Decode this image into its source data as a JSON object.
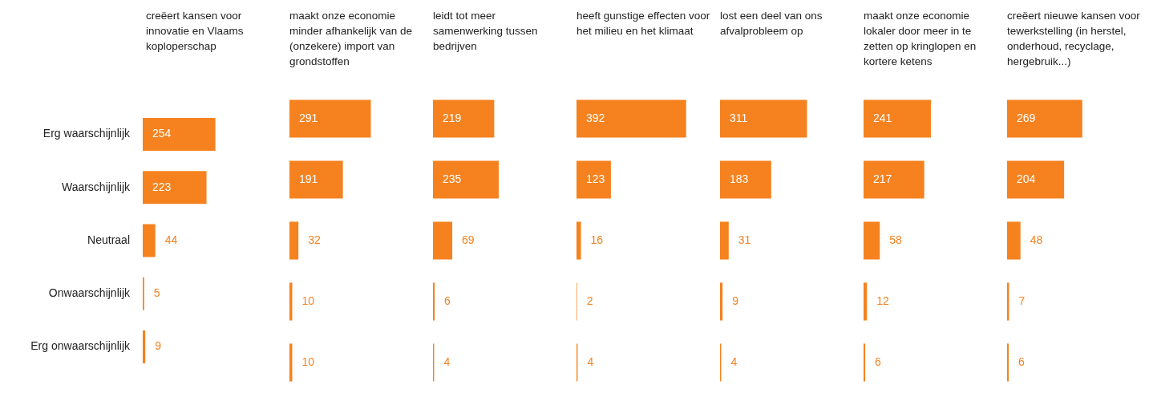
{
  "chart_data": [
    {
      "type": "bar",
      "orientation": "horizontal",
      "title": "creëert kansen voor innovatie en Vlaams koploperschap",
      "categories": [
        "Erg waarschijnlijk",
        "Waarschijnlijk",
        "Neutraal",
        "Onwaarschijnlijk",
        "Erg onwaarschijnlijk"
      ],
      "values": [
        254,
        223,
        44,
        5,
        9
      ],
      "color": "#f5821f",
      "data_labels": true,
      "tick_labels": "y"
    },
    {
      "type": "bar",
      "orientation": "horizontal",
      "title": "maakt onze economie minder afhankelijk van de (onzekere) import van grondstoffen",
      "categories": [
        null,
        null,
        null,
        null,
        null
      ],
      "values": [
        291,
        191,
        32,
        10,
        10
      ],
      "color": "#f5821f",
      "data_labels": true,
      "tick_labels": false
    },
    {
      "type": "bar",
      "orientation": "horizontal",
      "title": "leidt tot meer samenwerking tussen bedrijven",
      "categories": [
        null,
        null,
        null,
        null,
        null
      ],
      "values": [
        219,
        235,
        69,
        6,
        4
      ],
      "color": "#f5821f",
      "data_labels": true,
      "tick_labels": false
    },
    {
      "type": "bar",
      "orientation": "horizontal",
      "title": "heeft gunstige effecten voor het milieu en het klimaat",
      "categories": [
        null,
        null,
        null,
        null,
        null
      ],
      "values": [
        392,
        123,
        16,
        2,
        4
      ],
      "color": "#f5821f",
      "data_labels": true,
      "tick_labels": false
    },
    {
      "type": "bar",
      "orientation": "horizontal",
      "title": "lost een deel van ons afvalprobleem op",
      "categories": [
        null,
        null,
        null,
        null,
        null
      ],
      "values": [
        311,
        183,
        31,
        9,
        4
      ],
      "color": "#f5821f",
      "data_labels": true,
      "tick_labels": false
    },
    {
      "type": "bar",
      "orientation": "horizontal",
      "title": "maakt onze economie lokaler door meer in te zetten op kringlopen en kortere ketens",
      "categories": [
        null,
        null,
        null,
        null,
        null
      ],
      "values": [
        241,
        217,
        58,
        12,
        6
      ],
      "color": "#f5821f",
      "data_labels": true,
      "tick_labels": false
    },
    {
      "type": "bar",
      "orientation": "horizontal",
      "title": "creëert nieuwe kansen voor tewerkstelling (in herstel, onderhoud, recyclage, hergebruik...)",
      "categories": [
        null,
        null,
        null,
        null,
        null
      ],
      "values": [
        269,
        204,
        48,
        7,
        6
      ],
      "color": "#f5821f",
      "data_labels": true,
      "tick_labels": false
    }
  ]
}
